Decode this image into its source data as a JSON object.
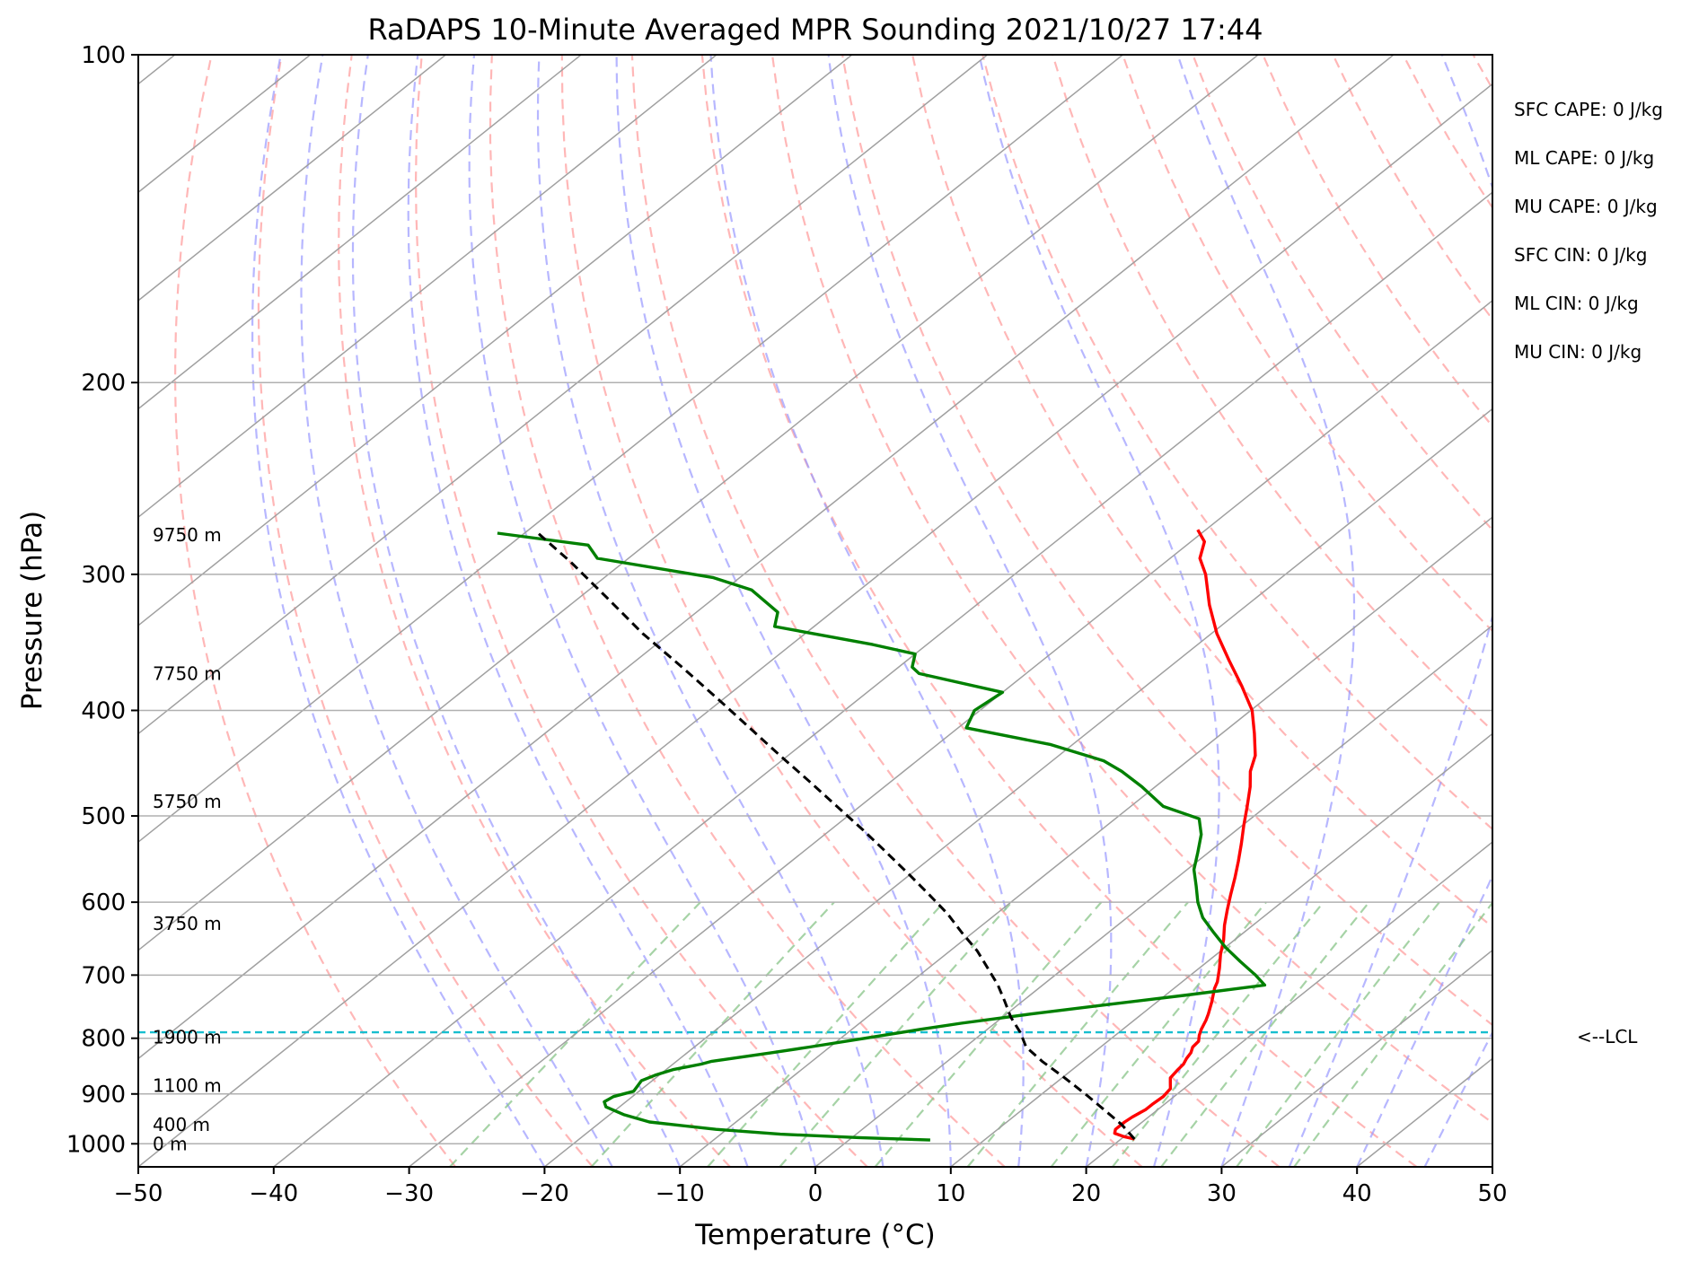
{
  "chart_data": {
    "type": "line",
    "title": "RaDAPS 10-Minute Averaged MPR Sounding 2021/10/27 17:44",
    "xlabel": "Temperature (°C)",
    "ylabel": "Pressure (hPa)",
    "xlim": [
      -50,
      50
    ],
    "ylim": [
      1050,
      100
    ],
    "y_scale": "log",
    "x_ticks": [
      -50,
      -40,
      -30,
      -20,
      -10,
      0,
      10,
      20,
      30,
      40,
      50
    ],
    "x_tick_labels": [
      "−50",
      "−40",
      "−30",
      "−20",
      "−10",
      "0",
      "10",
      "20",
      "30",
      "40",
      "50"
    ],
    "y_ticks": [
      100,
      200,
      300,
      400,
      500,
      600,
      700,
      800,
      900,
      1000
    ],
    "y_tick_labels": [
      "100",
      "200",
      "300",
      "400",
      "500",
      "600",
      "700",
      "800",
      "900",
      "1000"
    ],
    "grid": true,
    "skew": "skew-T log-P",
    "series": [
      {
        "color": "#ff0000",
        "points": [
          [
            21.0,
            990
          ],
          [
            20.0,
            985
          ],
          [
            19.0,
            978
          ],
          [
            18.7,
            970
          ],
          [
            18.7,
            955
          ],
          [
            18.8,
            945
          ],
          [
            19.1,
            930
          ],
          [
            19.1,
            920
          ],
          [
            19.2,
            905
          ],
          [
            19.0,
            890
          ],
          [
            18.5,
            880
          ],
          [
            18.0,
            870
          ],
          [
            17.8,
            855
          ],
          [
            17.7,
            845
          ],
          [
            17.4,
            835
          ],
          [
            17.2,
            825
          ],
          [
            16.8,
            815
          ],
          [
            16.7,
            805
          ],
          [
            16.2,
            795
          ],
          [
            15.8,
            785
          ],
          [
            15.3,
            770
          ],
          [
            14.9,
            760
          ],
          [
            14.0,
            740
          ],
          [
            13.0,
            720
          ],
          [
            12.6,
            710
          ],
          [
            11.5,
            690
          ],
          [
            10.3,
            670
          ],
          [
            9.2,
            650
          ],
          [
            7.9,
            630
          ],
          [
            6.7,
            610
          ],
          [
            5.5,
            590
          ],
          [
            4.3,
            570
          ],
          [
            3.0,
            550
          ],
          [
            1.6,
            530
          ],
          [
            0.1,
            510
          ],
          [
            -1.4,
            490
          ],
          [
            -3.0,
            470
          ],
          [
            -4.4,
            455
          ],
          [
            -5.5,
            440
          ],
          [
            -7.6,
            420
          ],
          [
            -9.9,
            400
          ],
          [
            -12.9,
            380
          ],
          [
            -16.2,
            360
          ],
          [
            -19.6,
            340
          ],
          [
            -22.8,
            320
          ],
          [
            -25.9,
            300
          ],
          [
            -27.8,
            290
          ],
          [
            -29.0,
            280
          ],
          [
            -30.6,
            273
          ]
        ]
      },
      {
        "color": "#008000",
        "points": [
          [
            6.0,
            992
          ],
          [
            0.5,
            987
          ],
          [
            -5.6,
            980
          ],
          [
            -10.8,
            970
          ],
          [
            -16.4,
            955
          ],
          [
            -19.0,
            940
          ],
          [
            -21.0,
            925
          ],
          [
            -21.6,
            915
          ],
          [
            -21.4,
            905
          ],
          [
            -20.4,
            895
          ],
          [
            -20.6,
            885
          ],
          [
            -20.8,
            875
          ],
          [
            -20.3,
            865
          ],
          [
            -19.5,
            855
          ],
          [
            -17.9,
            845
          ],
          [
            -17.4,
            840
          ],
          [
            -13.8,
            825
          ],
          [
            -11.5,
            815
          ],
          [
            -8.2,
            800
          ],
          [
            -4.9,
            785
          ],
          [
            -2.5,
            775
          ],
          [
            1.8,
            760
          ],
          [
            6.6,
            745
          ],
          [
            11.6,
            730
          ],
          [
            16.4,
            715
          ],
          [
            14.8,
            700
          ],
          [
            12.4,
            680
          ],
          [
            10.0,
            660
          ],
          [
            7.8,
            640
          ],
          [
            5.6,
            620
          ],
          [
            3.8,
            600
          ],
          [
            2.2,
            580
          ],
          [
            0.5,
            560
          ],
          [
            -0.8,
            540
          ],
          [
            -2.2,
            520
          ],
          [
            -3.8,
            503
          ],
          [
            -7.6,
            490
          ],
          [
            -11.0,
            470
          ],
          [
            -13.9,
            455
          ],
          [
            -16.2,
            445
          ],
          [
            -21.6,
            430
          ],
          [
            -29.4,
            415
          ],
          [
            -30.4,
            400
          ],
          [
            -30.0,
            385
          ],
          [
            -37.9,
            370
          ],
          [
            -39.0,
            365
          ],
          [
            -40.0,
            355
          ],
          [
            -44.0,
            348
          ],
          [
            -52.9,
            335
          ],
          [
            -54.0,
            325
          ],
          [
            -58.0,
            310
          ],
          [
            -62.0,
            302
          ],
          [
            -72.3,
            290
          ],
          [
            -74.2,
            282
          ],
          [
            -82.0,
            275
          ]
        ]
      },
      {
        "color": "#000000",
        "dashed": true,
        "points": [
          [
            21.0,
            990
          ],
          [
            18.7,
            960
          ],
          [
            16.0,
            930
          ],
          [
            13.2,
            900
          ],
          [
            10.2,
            870
          ],
          [
            7.0,
            840
          ],
          [
            4.5,
            815
          ],
          [
            2.7,
            790
          ],
          [
            0.6,
            765
          ],
          [
            -1.3,
            740
          ],
          [
            -3.3,
            715
          ],
          [
            -5.6,
            690
          ],
          [
            -8.0,
            665
          ],
          [
            -10.8,
            640
          ],
          [
            -13.6,
            615
          ],
          [
            -16.8,
            590
          ],
          [
            -20.2,
            565
          ],
          [
            -23.8,
            540
          ],
          [
            -27.6,
            515
          ],
          [
            -31.7,
            490
          ],
          [
            -36.0,
            465
          ],
          [
            -40.6,
            440
          ],
          [
            -45.4,
            415
          ],
          [
            -50.5,
            390
          ],
          [
            -56.0,
            365
          ],
          [
            -62.0,
            340
          ],
          [
            -68.0,
            315
          ],
          [
            -74.0,
            292
          ],
          [
            -79.0,
            275
          ]
        ]
      }
    ],
    "lcl_pressure": 790,
    "lcl_label": "<--LCL",
    "height_labels": [
      {
        "text": "9750 m",
        "p": 276
      },
      {
        "text": "7750 m",
        "p": 370
      },
      {
        "text": "5750 m",
        "p": 485
      },
      {
        "text": "3750 m",
        "p": 628
      },
      {
        "text": "1900 m",
        "p": 798
      },
      {
        "text": "1100 m",
        "p": 884
      },
      {
        "text": "400 m",
        "p": 960
      },
      {
        "text": "0 m",
        "p": 1000
      }
    ],
    "annotations": [
      "SFC CAPE: 0 J/kg",
      "ML CAPE: 0 J/kg",
      "MU CAPE: 0 J/kg",
      "SFC CIN: 0 J/kg",
      "ML CIN: 0 J/kg",
      "MU CIN: 0 J/kg"
    ],
    "colors": {
      "temperature": "#ff0000",
      "dewpoint": "#008000",
      "parcel": "#000000",
      "lcl_line": "#17becf",
      "dry_adiabats": "#ff9999",
      "moist_adiabats": "#9999ff",
      "mixing_ratio": "#88c488",
      "isotherms": "#a0a0a0",
      "grid": "#b0b0b0"
    }
  }
}
